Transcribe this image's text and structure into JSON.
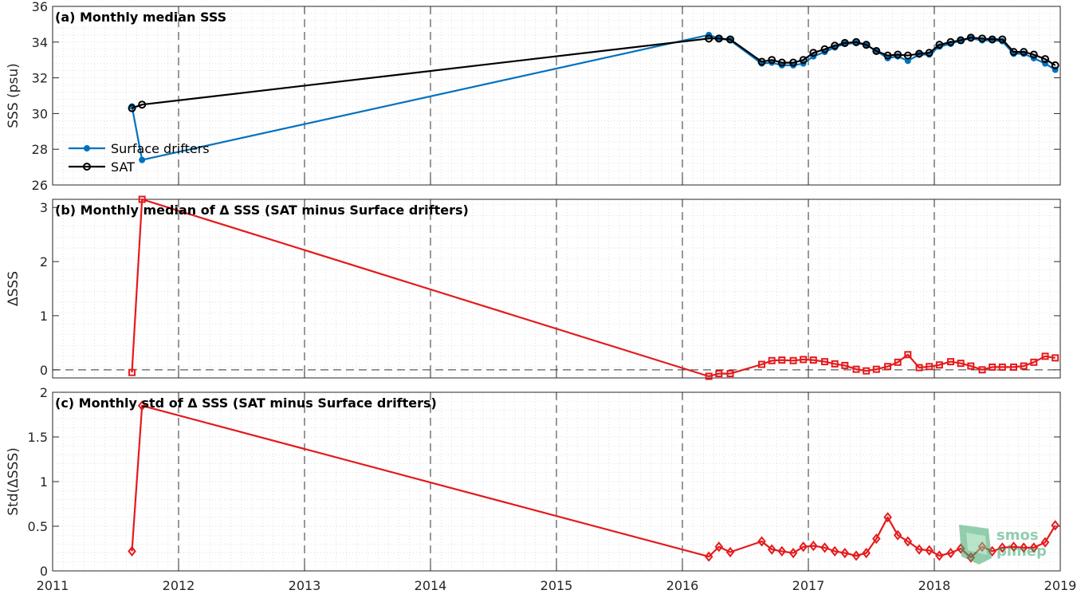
{
  "chart_data": [
    {
      "type": "line",
      "title": "(a) Monthly median SSS",
      "ylabel": "SSS (psu)",
      "xlim": [
        2011,
        2019
      ],
      "ylim": [
        26,
        36
      ],
      "yticks": [
        26,
        28,
        30,
        32,
        34,
        36
      ],
      "legend_position": "lower-left",
      "series": [
        {
          "name": "Surface drifters",
          "color": "#0072bd",
          "marker": "filled-dot",
          "x": [
            2011.63,
            2011.71,
            2016.21,
            2016.29,
            2016.38,
            2016.63,
            2016.71,
            2016.79,
            2016.88,
            2016.96,
            2017.04,
            2017.13,
            2017.21,
            2017.29,
            2017.38,
            2017.46,
            2017.54,
            2017.63,
            2017.71,
            2017.79,
            2017.88,
            2017.96,
            2018.04,
            2018.13,
            2018.21,
            2018.29,
            2018.38,
            2018.46,
            2018.54,
            2018.63,
            2018.71,
            2018.79,
            2018.88,
            2018.96
          ],
          "values": [
            30.4,
            27.4,
            34.4,
            34.2,
            34.1,
            32.8,
            32.85,
            32.7,
            32.7,
            32.8,
            33.2,
            33.45,
            33.7,
            33.9,
            33.95,
            33.85,
            33.5,
            33.1,
            33.2,
            32.95,
            33.3,
            33.3,
            33.75,
            33.9,
            34.1,
            34.2,
            34.1,
            34.1,
            34.05,
            33.35,
            33.35,
            33.1,
            32.8,
            32.45
          ]
        },
        {
          "name": "SAT",
          "color": "#000000",
          "marker": "open-circle",
          "x": [
            2011.63,
            2011.71,
            2016.21,
            2016.29,
            2016.38,
            2016.63,
            2016.71,
            2016.79,
            2016.88,
            2016.96,
            2017.04,
            2017.13,
            2017.21,
            2017.29,
            2017.38,
            2017.46,
            2017.54,
            2017.63,
            2017.71,
            2017.79,
            2017.88,
            2017.96,
            2018.04,
            2018.13,
            2018.21,
            2018.29,
            2018.38,
            2018.46,
            2018.54,
            2018.63,
            2018.71,
            2018.79,
            2018.88,
            2018.96
          ],
          "values": [
            30.3,
            30.5,
            34.2,
            34.2,
            34.15,
            32.9,
            33.0,
            32.85,
            32.85,
            33.0,
            33.4,
            33.6,
            33.8,
            33.95,
            34.0,
            33.85,
            33.5,
            33.25,
            33.3,
            33.25,
            33.35,
            33.4,
            33.85,
            34.0,
            34.1,
            34.25,
            34.2,
            34.15,
            34.15,
            33.45,
            33.45,
            33.3,
            33.05,
            32.7
          ]
        }
      ]
    },
    {
      "type": "line",
      "title": "(b) Monthly median of Δ SSS (SAT minus Surface drifters)",
      "ylabel": "ΔSSS",
      "xlim": [
        2011,
        2019
      ],
      "ylim": [
        -0.15,
        3.15
      ],
      "yticks": [
        0,
        1,
        2,
        3
      ],
      "zero_line": true,
      "series": [
        {
          "name": "",
          "color": "#e41a1c",
          "marker": "open-square",
          "x": [
            2011.63,
            2011.71,
            2016.21,
            2016.29,
            2016.38,
            2016.63,
            2016.71,
            2016.79,
            2016.88,
            2016.96,
            2017.04,
            2017.13,
            2017.21,
            2017.29,
            2017.38,
            2017.46,
            2017.54,
            2017.63,
            2017.71,
            2017.79,
            2017.88,
            2017.96,
            2018.04,
            2018.13,
            2018.21,
            2018.29,
            2018.38,
            2018.46,
            2018.54,
            2018.63,
            2018.71,
            2018.79,
            2018.88,
            2018.96
          ],
          "values": [
            -0.05,
            3.15,
            -0.12,
            -0.07,
            -0.07,
            0.1,
            0.17,
            0.18,
            0.17,
            0.19,
            0.18,
            0.15,
            0.11,
            0.08,
            0.01,
            -0.02,
            0.01,
            0.06,
            0.14,
            0.28,
            0.04,
            0.06,
            0.09,
            0.15,
            0.12,
            0.07,
            0.0,
            0.05,
            0.05,
            0.05,
            0.07,
            0.14,
            0.25,
            0.22
          ]
        }
      ]
    },
    {
      "type": "line",
      "title": "(c) Monthly std of Δ SSS (SAT minus Surface drifters)",
      "ylabel": "Std(ΔSSS)",
      "xlim": [
        2011,
        2019
      ],
      "ylim": [
        0,
        2
      ],
      "yticks": [
        0,
        0.5,
        1,
        1.5,
        2
      ],
      "xticks": [
        2011,
        2012,
        2013,
        2014,
        2015,
        2016,
        2017,
        2018,
        2019
      ],
      "series": [
        {
          "name": "",
          "color": "#e41a1c",
          "marker": "open-diamond",
          "x": [
            2011.63,
            2011.71,
            2016.21,
            2016.29,
            2016.38,
            2016.63,
            2016.71,
            2016.79,
            2016.88,
            2016.96,
            2017.04,
            2017.13,
            2017.21,
            2017.29,
            2017.38,
            2017.46,
            2017.54,
            2017.63,
            2017.71,
            2017.79,
            2017.88,
            2017.96,
            2018.04,
            2018.13,
            2018.21,
            2018.29,
            2018.38,
            2018.46,
            2018.54,
            2018.63,
            2018.71,
            2018.79,
            2018.88,
            2018.96
          ],
          "values": [
            0.22,
            1.85,
            0.16,
            0.27,
            0.21,
            0.33,
            0.24,
            0.22,
            0.2,
            0.27,
            0.28,
            0.26,
            0.22,
            0.2,
            0.17,
            0.2,
            0.36,
            0.6,
            0.4,
            0.33,
            0.24,
            0.23,
            0.17,
            0.2,
            0.25,
            0.15,
            0.27,
            0.22,
            0.26,
            0.27,
            0.26,
            0.26,
            0.32,
            0.51
          ]
        }
      ]
    }
  ],
  "watermark": {
    "text_top": "smos",
    "text_bottom": "pimep"
  }
}
